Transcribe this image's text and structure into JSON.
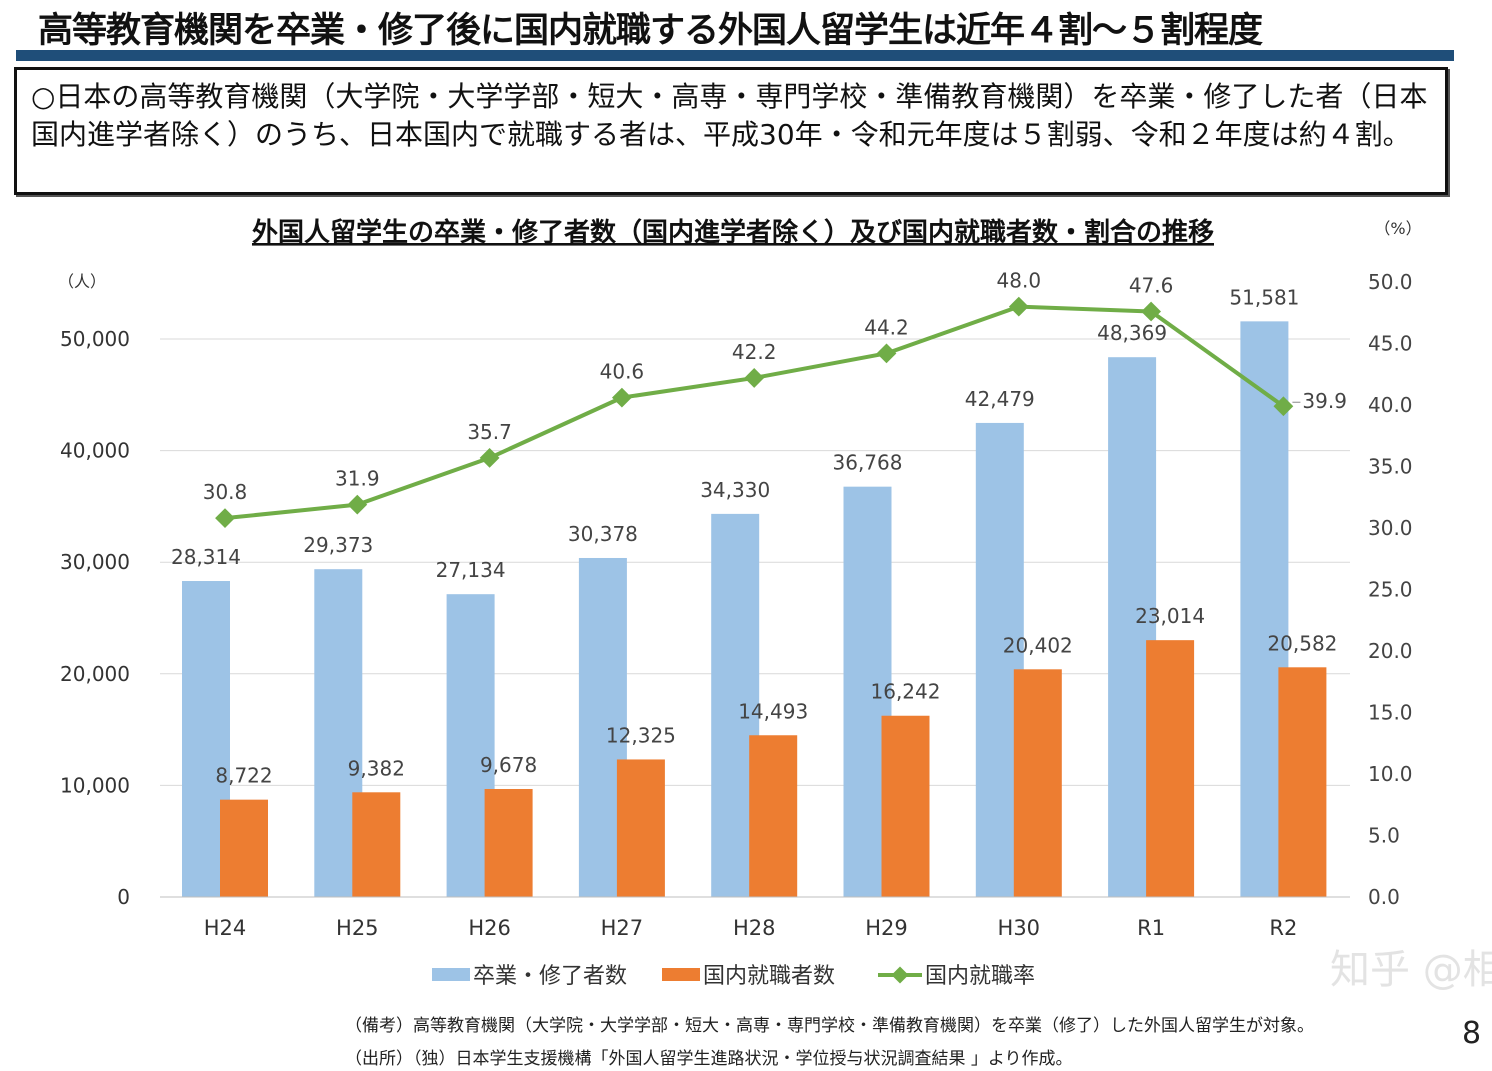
{
  "header": {
    "title": "高等教育機関を卒業・修了後に国内就職する外国人留学生は近年４割～５割程度",
    "summary": "○日本の高等教育機関（大学院・大学学部・短大・高専・専門学校・準備教育機関）を卒業・修了した者（日本国内進学者除く）のうち、日本国内で就職する者は、平成30年・令和元年度は５割弱、令和２年度は約４割。"
  },
  "chart_data": {
    "type": "bar+line",
    "title": "外国人留学生の卒業・修了者数（国内進学者除く）及び国内就職者数・割合の推移",
    "ylabel_left": "（人）",
    "ylabel_right": "（%）",
    "ylim_left": [
      0,
      55000
    ],
    "yticks_left": [
      "0",
      "10,000",
      "20,000",
      "30,000",
      "40,000",
      "50,000"
    ],
    "ylim_right": [
      0,
      55
    ],
    "yticks_right": [
      "0.0",
      "5.0",
      "10.0",
      "15.0",
      "20.0",
      "25.0",
      "30.0",
      "35.0",
      "40.0",
      "45.0",
      "50.0"
    ],
    "categories": [
      "H24",
      "H25",
      "H26",
      "H27",
      "H28",
      "H29",
      "H30",
      "R1",
      "R2"
    ],
    "grid": true,
    "legend": "bottom",
    "series": [
      {
        "name": "卒業・修了者数",
        "type": "bar",
        "axis": "left",
        "color": "#9dc3e6",
        "values": [
          28314,
          29373,
          27134,
          30378,
          34330,
          36768,
          42479,
          48369,
          51581
        ],
        "labels": [
          "28,314",
          "29,373",
          "27,134",
          "30,378",
          "34,330",
          "36,768",
          "42,479",
          "48,369",
          "51,581"
        ]
      },
      {
        "name": "国内就職者数",
        "type": "bar",
        "axis": "left",
        "color": "#ed7d31",
        "values": [
          8722,
          9382,
          9678,
          12325,
          14493,
          16242,
          20402,
          23014,
          20582
        ],
        "labels": [
          "8,722",
          "9,382",
          "9,678",
          "12,325",
          "14,493",
          "16,242",
          "20,402",
          "23,014",
          "20,582"
        ]
      },
      {
        "name": "国内就職率",
        "type": "line",
        "axis": "right",
        "color": "#70ad47",
        "values": [
          30.8,
          31.9,
          35.7,
          40.6,
          42.2,
          44.2,
          48.0,
          47.6,
          39.9
        ],
        "labels": [
          "30.8",
          "31.9",
          "35.7",
          "40.6",
          "42.2",
          "44.2",
          "48.0",
          "47.6",
          "39.9"
        ]
      }
    ]
  },
  "footnote": {
    "note": "（備考）高等教育機関（大学院・大学学部・短大・高専・専門学校・準備教育機関）を卒業（修了）した外国人留学生が対象。",
    "source": "（出所）（独）日本学生支援機構「外国人留学生進路状況・学位授与状況調査結果 」より作成。"
  },
  "page_number": "8",
  "watermark": "知乎 @相棒"
}
